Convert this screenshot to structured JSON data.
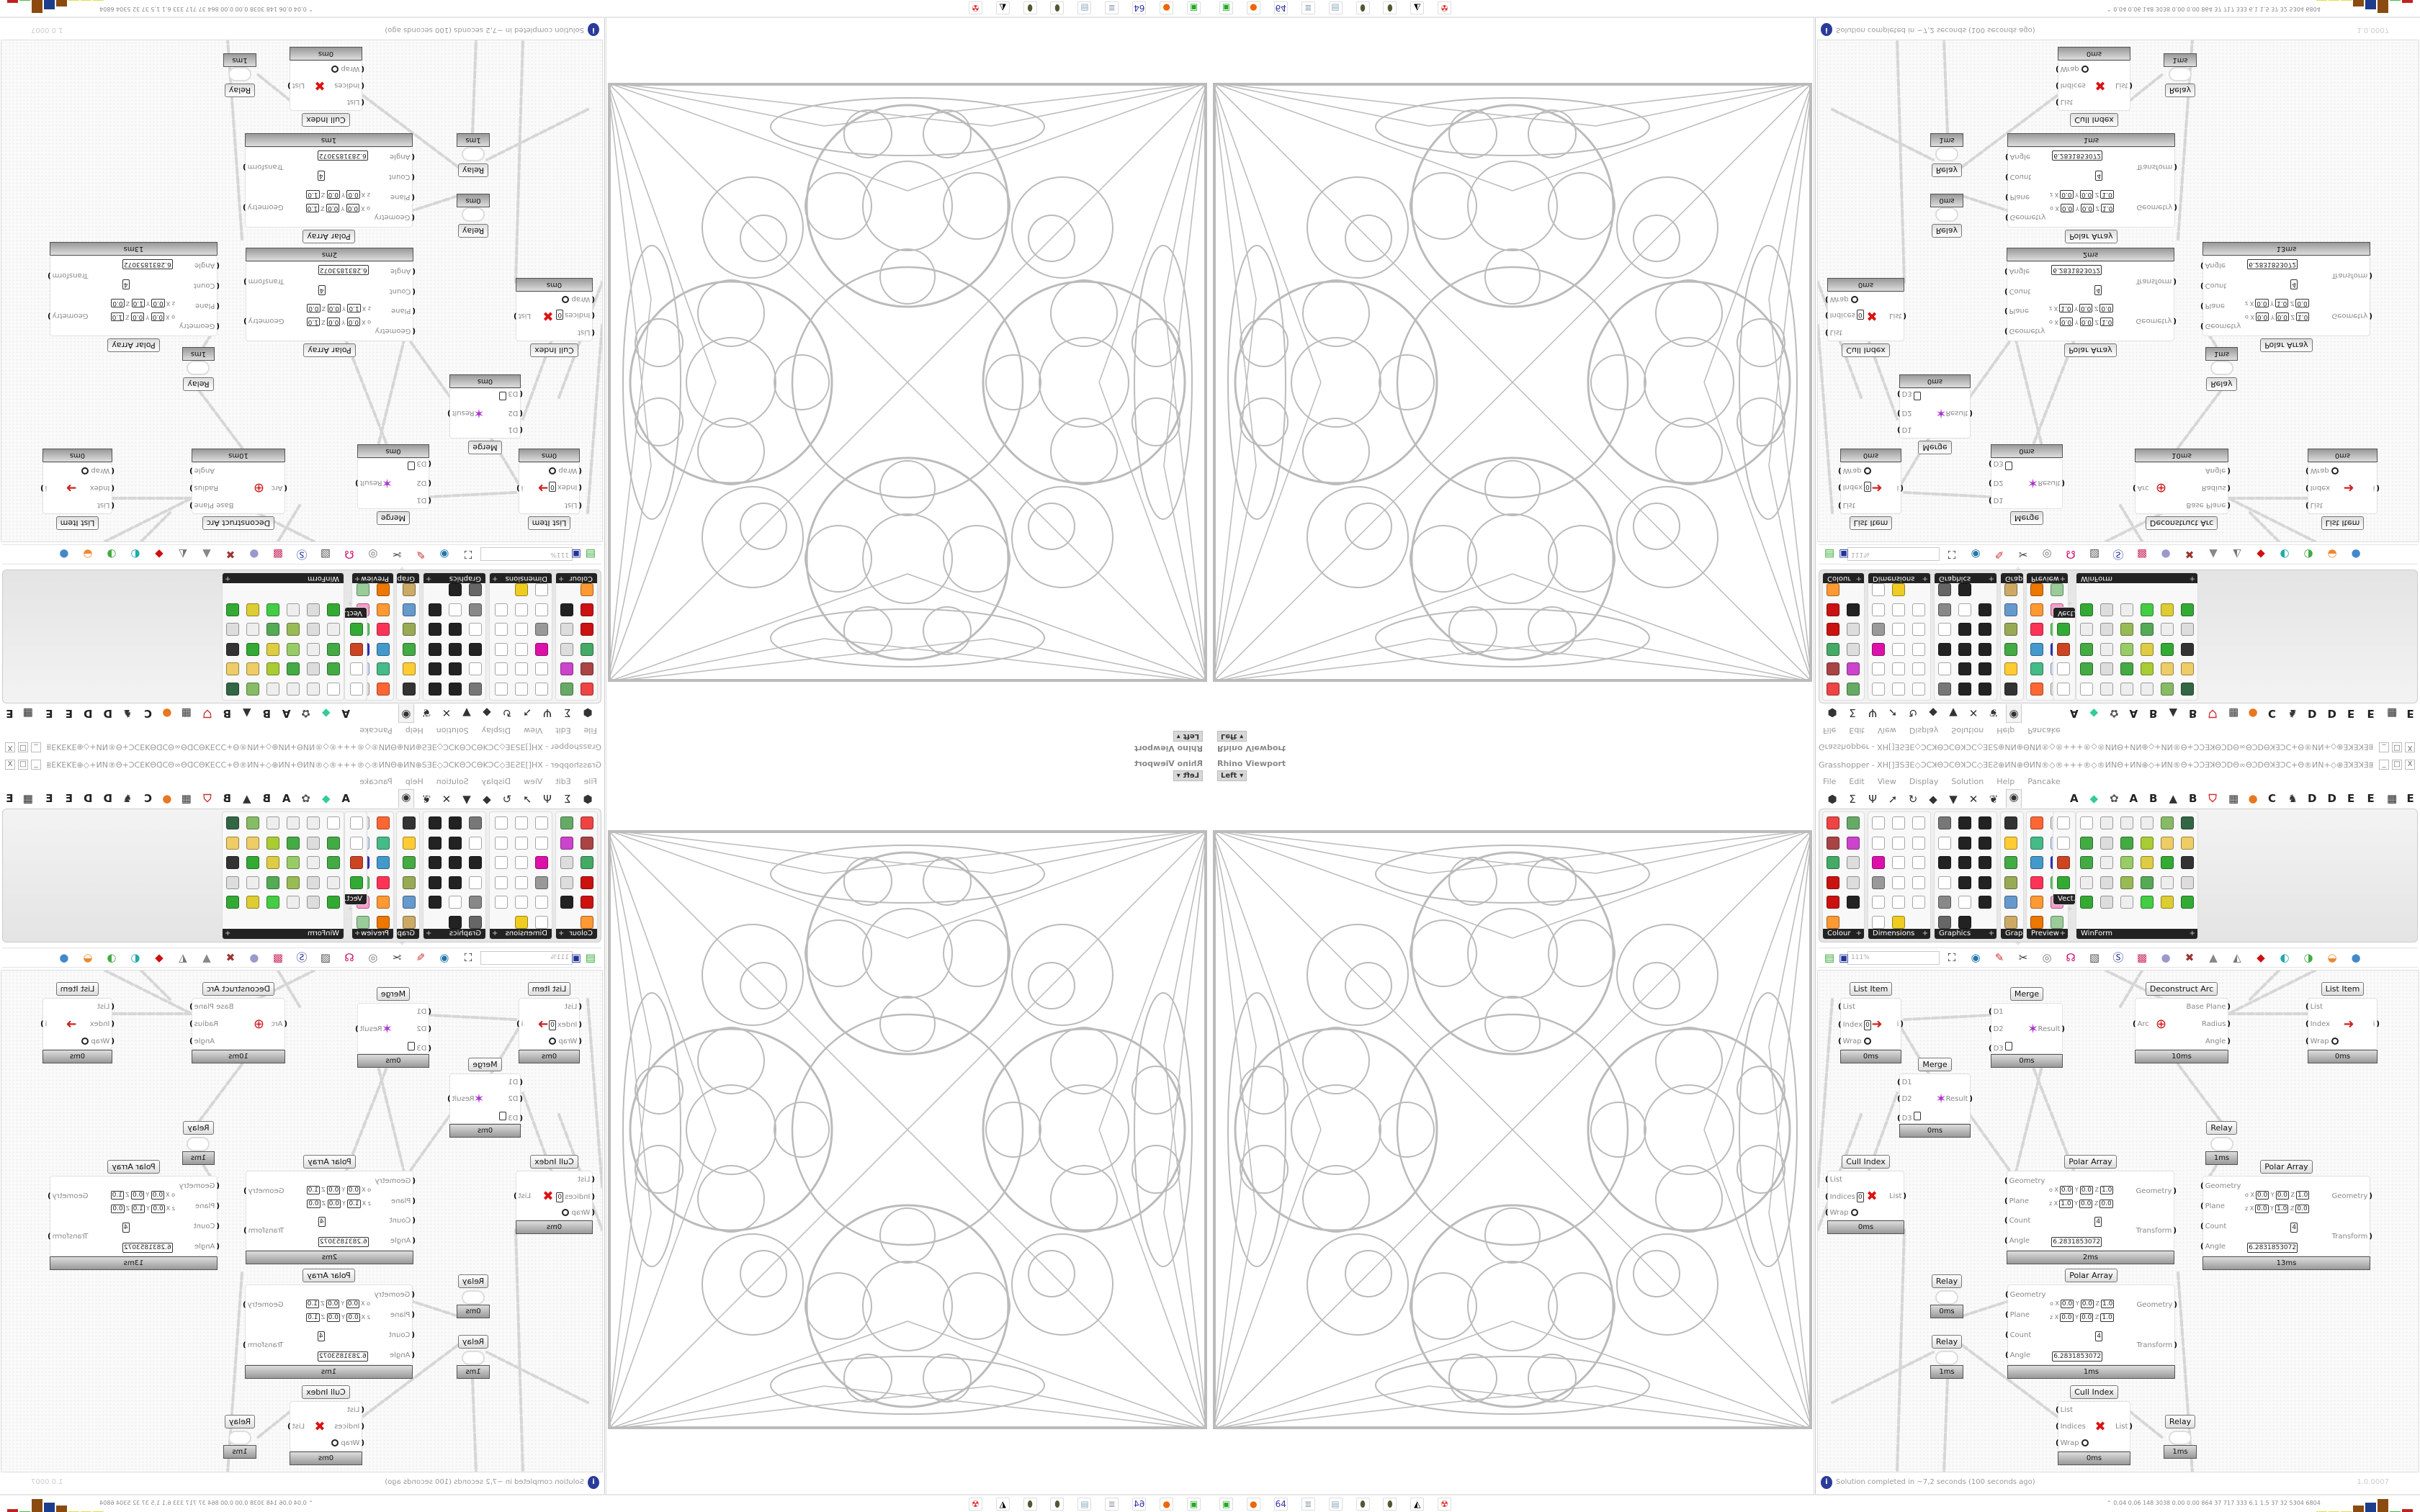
{
  "viewport": {
    "label": "Rhino Viewport",
    "view": "Left",
    "dropdown_glyph": "▾"
  },
  "window": {
    "title": "Grasshopper - XH[]ƎSƎE◇ƆCꓘΘƆCΘꓘƆC◇ƎEƧ⊕ИN⊕ΘИN®◇®+++®◇®ИNΘ+ИN⊕◇+ИN®Θ+ƆƆƎꓘΘƆDΘ∞ΘƆDΘꓘƎƆC+Θ®ИN+◇⊕ƎꓘƎꓘƎ⊞+ƎƧ+⊞ƎꓘƎ⊕◇+ꓘƆƆƎ⊞++ƆC",
    "buttons": {
      "minimize": "_",
      "maximize": "□",
      "close": "X"
    }
  },
  "menu": [
    "File",
    "Edit",
    "View",
    "Display",
    "Solution",
    "Help",
    "Pancake"
  ],
  "tab_icons": [
    {
      "name": "params-tab",
      "glyph": "⬢"
    },
    {
      "name": "maths-tab",
      "glyph": "Σ"
    },
    {
      "name": "sets-tab",
      "glyph": "Ψ"
    },
    {
      "name": "vector-tab",
      "glyph": "➚"
    },
    {
      "name": "curve-tab",
      "glyph": "↻"
    },
    {
      "name": "surface-tab",
      "glyph": "◆"
    },
    {
      "name": "mesh-tab",
      "glyph": "▼"
    },
    {
      "name": "intersect-tab",
      "glyph": "✕"
    },
    {
      "name": "transform-tab",
      "glyph": "❦"
    },
    {
      "name": "display-tab",
      "glyph": "◉"
    }
  ],
  "plugin_tabs": [
    {
      "glyph": "A",
      "color": "#222"
    },
    {
      "glyph": "◆",
      "color": "#3c9"
    },
    {
      "glyph": "✿",
      "color": "#555"
    },
    {
      "glyph": "A",
      "color": "#222"
    },
    {
      "glyph": "B",
      "color": "#222"
    },
    {
      "glyph": "▲",
      "color": "#333"
    },
    {
      "glyph": "B",
      "color": "#222"
    },
    {
      "glyph": "⛉",
      "color": "#c33"
    },
    {
      "glyph": "▦",
      "color": "#333"
    },
    {
      "glyph": "●",
      "color": "#e87722"
    },
    {
      "glyph": "C",
      "color": "#222"
    },
    {
      "glyph": "♞",
      "color": "#333"
    },
    {
      "glyph": "D",
      "color": "#222"
    },
    {
      "glyph": "D",
      "color": "#222"
    },
    {
      "glyph": "E",
      "color": "#222"
    },
    {
      "glyph": "E",
      "color": "#222"
    },
    {
      "glyph": "▦",
      "color": "#222"
    },
    {
      "glyph": "E",
      "color": "#222"
    }
  ],
  "ribbon_panels": [
    {
      "label": "Colour",
      "cols": 2,
      "icons": [
        "#e44",
        "#6a6",
        "#a44",
        "#c4c",
        "#4a6",
        "#ddd",
        "#c11",
        "#ddd",
        "#c11",
        "#222",
        "#f93"
      ]
    },
    {
      "label": "Dimensions",
      "cols": 3,
      "icons": [
        "#fff",
        "#fff",
        "#fff",
        "#fff",
        "#fff",
        "#fff",
        "#d1a",
        "#fff",
        "#fff",
        "#999",
        "#fff",
        "#fff",
        "#fff",
        "#fff",
        "#fff",
        "#fff",
        "#ec2"
      ]
    },
    {
      "label": "Graphics",
      "cols": 3,
      "icons": [
        "#777",
        "#222",
        "#222",
        "#fff",
        "#222",
        "#222",
        "#222",
        "#222",
        "#222",
        "#fff",
        "#222",
        "#222",
        "#888",
        "#fff",
        "#222",
        "#666",
        "#222"
      ]
    },
    {
      "label": "Grap...",
      "cols": 1,
      "icons": [
        "#333",
        "#fc3",
        "#4a4",
        "#9a5",
        "#69c",
        "#ca6"
      ]
    },
    {
      "label": "Preview",
      "cols": 2,
      "icons": [
        "#f63",
        "#ddd",
        "#4b8",
        "#cdf",
        "#49c",
        "#33c",
        "#f35",
        "#6c6",
        "#f93",
        "#f9c",
        "#e70",
        "#9c9"
      ]
    },
    {
      "label": "Vect...",
      "cols": 1,
      "icons": [
        "#fff",
        "#fff",
        "#c42",
        "#3a3"
      ]
    },
    {
      "label": "WinForm",
      "cols": 6,
      "icons": [
        "#fff",
        "#eee",
        "#eee",
        "#eee",
        "#8b6",
        "#364",
        "#4a4",
        "#ddd",
        "#4a4",
        "#ac3",
        "#ec6",
        "#ec6",
        "#4a4",
        "#eee",
        "#9c6",
        "#dc4",
        "#3a3",
        "#333",
        "#eee",
        "#ddd",
        "#9b5",
        "#5a5",
        "#eee",
        "#ddd",
        "#3a3",
        "#ddd",
        "#eee",
        "#4c4",
        "#dc3",
        "#3a3"
      ]
    }
  ],
  "canvas_toolbar": {
    "zoom": "111%",
    "icons": [
      {
        "name": "open-file",
        "glyph": "▤",
        "color": "#3a3"
      },
      {
        "name": "save-file",
        "glyph": "▣",
        "color": "#239"
      },
      {
        "name": "zoom-extents",
        "glyph": "⛶",
        "color": "#111"
      },
      {
        "name": "preview",
        "glyph": "◉",
        "color": "#27a"
      },
      {
        "name": "sketch",
        "glyph": "✎",
        "color": "#c33"
      },
      {
        "name": "clipper",
        "glyph": "✂",
        "color": "#333"
      },
      {
        "name": "pancake",
        "glyph": "◎",
        "color": "#777"
      },
      {
        "name": "cha",
        "glyph": "☊",
        "color": "#c06"
      },
      {
        "name": "doc",
        "glyph": "▧",
        "color": "#555"
      },
      {
        "name": "search",
        "glyph": "Ⓢ",
        "color": "#239"
      },
      {
        "name": "package",
        "glyph": "▩",
        "color": "#c36"
      },
      {
        "name": "bubble",
        "glyph": "●",
        "color": "#99c"
      },
      {
        "name": "scissors",
        "glyph": "✖",
        "color": "#933"
      },
      {
        "name": "bell",
        "glyph": "▲",
        "color": "#888"
      },
      {
        "name": "cone",
        "glyph": "◭",
        "color": "#777"
      },
      {
        "name": "gem",
        "glyph": "◆",
        "color": "#c11"
      },
      {
        "name": "teal-shape",
        "glyph": "◐",
        "color": "#2aa"
      },
      {
        "name": "green-shape",
        "glyph": "◑",
        "color": "#4a4"
      },
      {
        "name": "orange-ball",
        "glyph": "◒",
        "color": "#e83"
      },
      {
        "name": "blue-drop",
        "glyph": "●",
        "color": "#48c"
      }
    ]
  },
  "nodes": [
    {
      "title": "List Item",
      "footer": "0ms",
      "kind": "list",
      "inputs": [
        {
          "label": "List"
        },
        {
          "label": "Index",
          "value": "0"
        },
        {
          "label": "Wrap",
          "ring": true
        }
      ],
      "outputs": [
        "i"
      ],
      "icon": "➜"
    },
    {
      "title": "Merge",
      "footer": "0ms",
      "kind": "merge",
      "inputs": [
        {
          "label": "D1"
        },
        {
          "label": "D2"
        },
        {
          "label": "D3",
          "empty": true
        }
      ],
      "outputs": [
        "Result"
      ],
      "icon": "✶"
    },
    {
      "title": "Deconstruct Arc",
      "footer": "10ms",
      "kind": "arc",
      "inputs": [
        {
          "label": "Arc"
        }
      ],
      "outputs": [
        "Base Plane",
        "Radius",
        "Angle"
      ],
      "icon": "⊕"
    },
    {
      "title": "List Item",
      "footer": "0ms",
      "kind": "list",
      "inputs": [
        {
          "label": "List"
        },
        {
          "label": "Index"
        },
        {
          "label": "Wrap",
          "ring": true
        }
      ],
      "outputs": [
        "i"
      ],
      "icon": "➜"
    },
    {
      "title": "Merge",
      "footer": "0ms",
      "kind": "merge",
      "inputs": [
        {
          "label": "D1"
        },
        {
          "label": "D2"
        },
        {
          "label": "D3",
          "empty": true
        }
      ],
      "outputs": [
        "Result"
      ],
      "icon": "✶"
    },
    {
      "title": "Relay",
      "footer": "1ms",
      "kind": "relay"
    },
    {
      "title": "Cull Index",
      "footer": "0ms",
      "kind": "cull",
      "inputs": [
        {
          "label": "List"
        },
        {
          "label": "Indices",
          "value": "0"
        },
        {
          "label": "Wrap",
          "ring": true
        }
      ],
      "outputs": [
        "List"
      ],
      "icon": "✖"
    },
    {
      "title": "Polar Array",
      "footer": "2ms",
      "kind": "polar",
      "inputs": [
        {
          "label": "Geometry"
        },
        {
          "label": "Plane"
        },
        {
          "label": "Count",
          "value": "4"
        },
        {
          "label": "Angle",
          "value": "6.2831853072"
        }
      ],
      "outputs": [
        "Geometry",
        "Transform"
      ],
      "plane": {
        "o": [
          "0.0",
          "0.0",
          "1.0"
        ],
        "z": [
          "1.0",
          "0.0",
          "0.0"
        ]
      }
    },
    {
      "title": "Polar Array",
      "footer": "13ms",
      "kind": "polar",
      "inputs": [
        {
          "label": "Geometry"
        },
        {
          "label": "Plane"
        },
        {
          "label": "Count",
          "value": "4"
        },
        {
          "label": "Angle",
          "value": "6.2831853072"
        }
      ],
      "outputs": [
        "Geometry",
        "Transform"
      ],
      "plane": {
        "o": [
          "0.0",
          "0.0",
          "1.0"
        ],
        "z": [
          "0.0",
          "1.0",
          "0.0"
        ]
      }
    },
    {
      "title": "Relay",
      "footer": "0ms",
      "kind": "relay"
    },
    {
      "title": "Relay",
      "footer": "1ms",
      "kind": "relay"
    },
    {
      "title": "Polar Array",
      "footer": "1ms",
      "kind": "polar",
      "inputs": [
        {
          "label": "Geometry"
        },
        {
          "label": "Plane"
        },
        {
          "label": "Count",
          "value": "4"
        },
        {
          "label": "Angle",
          "value": "6.2831853072"
        }
      ],
      "outputs": [
        "Geometry",
        "Transform"
      ],
      "plane": {
        "o": [
          "0.0",
          "0.0",
          "1.0"
        ],
        "z": [
          "0.0",
          "0.0",
          "1.0"
        ]
      }
    },
    {
      "title": "Cull Index",
      "footer": "0ms",
      "kind": "cull",
      "inputs": [
        {
          "label": "List"
        },
        {
          "label": "Indices"
        },
        {
          "label": "Wrap",
          "ring": true
        }
      ],
      "outputs": [
        "List"
      ],
      "icon": "✖"
    },
    {
      "title": "Relay",
      "footer": "1ms",
      "kind": "relay"
    }
  ],
  "status": {
    "text": "Solution completed in ~7,2 seconds (100 seconds ago)",
    "version": "1.0.0007",
    "icon": "info-icon"
  },
  "taskbar": {
    "icons": [
      {
        "name": "terminal",
        "glyph": "▣",
        "color": "#2a2"
      },
      {
        "name": "firefox",
        "glyph": "●",
        "color": "#e60"
      },
      {
        "name": "save-64",
        "glyph": "64",
        "color": "#33a"
      },
      {
        "name": "notepad-scroll",
        "glyph": "≣",
        "color": "#89a"
      },
      {
        "name": "notepad",
        "glyph": "▤",
        "color": "#8ab"
      },
      {
        "name": "beetle-1",
        "glyph": "⬮",
        "color": "#553"
      },
      {
        "name": "beetle-2",
        "glyph": "⬮",
        "color": "#553"
      },
      {
        "name": "wolf",
        "glyph": "◭",
        "color": "#000"
      },
      {
        "name": "red-skull",
        "glyph": "☢",
        "color": "#d22"
      }
    ],
    "stats": "0.04 0.06 148 3038 0.00 0.00 864 37 717 333 6.1 1.5 37 32 5304 6804",
    "graph": [
      {
        "color": "#e0e040",
        "level": 0.05
      },
      {
        "color": "#e0e040",
        "level": 0.05
      },
      {
        "color": "#e0e040",
        "level": 0.05
      },
      {
        "color": "#8a4a10",
        "level": 0.45
      },
      {
        "color": "#1c3c8c",
        "level": 0.65
      },
      {
        "color": "#8a4a10",
        "level": 0.85
      },
      {
        "color": "#40c040",
        "level": 0.05
      },
      {
        "color": "#c02020",
        "level": 0.25
      }
    ],
    "graph_arrow": "⌃"
  }
}
